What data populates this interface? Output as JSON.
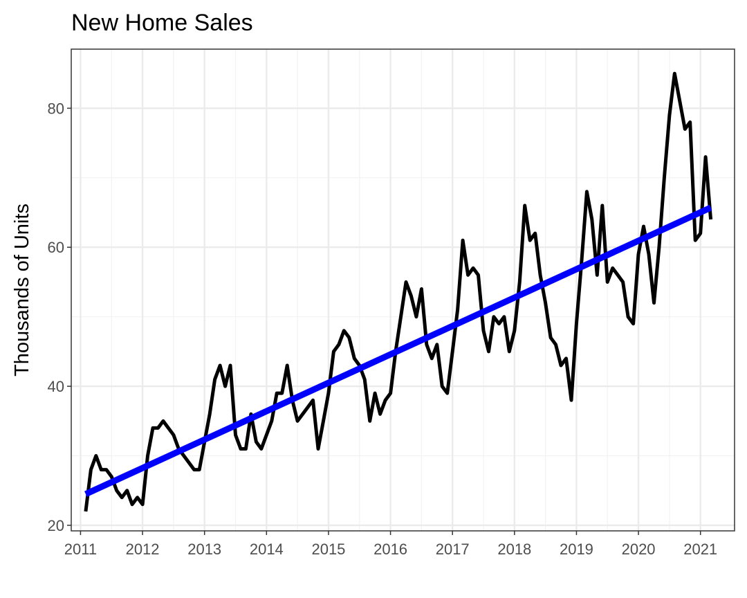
{
  "chart_data": {
    "type": "line",
    "title": "New Home Sales",
    "xlabel": "",
    "ylabel": "Thousands of Units",
    "xlim": [
      2010.85,
      2021.55
    ],
    "ylim": [
      19.2,
      88.5
    ],
    "x_ticks": [
      2011,
      2012,
      2013,
      2014,
      2015,
      2016,
      2017,
      2018,
      2019,
      2020,
      2021
    ],
    "x_tick_labels": [
      "2011",
      "2012",
      "2013",
      "2014",
      "2015",
      "2016",
      "2017",
      "2018",
      "2019",
      "2020",
      "2021"
    ],
    "y_ticks": [
      20,
      40,
      60,
      80
    ],
    "y_tick_labels": [
      "20",
      "40",
      "60",
      "80"
    ],
    "y_minor_ticks": [
      30,
      50,
      70
    ],
    "x_minor_ticks": [
      2011.5,
      2012.5,
      2013.5,
      2014.5,
      2015.5,
      2016.5,
      2017.5,
      2018.5,
      2019.5,
      2020.5
    ],
    "grid": true,
    "series": [
      {
        "color": "#000000",
        "x_start": 2011.0833,
        "x_step": 0.08333,
        "values": [
          22,
          28,
          30,
          28,
          28,
          27,
          25,
          24,
          25,
          23,
          24,
          23,
          30,
          34,
          34,
          35,
          34,
          33,
          31,
          30,
          29,
          28,
          28,
          32,
          36,
          41,
          43,
          40,
          43,
          33,
          31,
          31,
          36,
          32,
          31,
          33,
          35,
          39,
          39,
          43,
          38,
          35,
          36,
          37,
          38,
          31,
          35,
          39,
          45,
          46,
          48,
          47,
          44,
          43,
          41,
          35,
          39,
          36,
          38,
          39,
          45,
          50,
          55,
          53,
          50,
          54,
          46,
          44,
          46,
          40,
          39,
          45,
          51,
          61,
          56,
          57,
          56,
          48,
          45,
          50,
          49,
          50,
          45,
          48,
          55,
          66,
          61,
          62,
          56,
          52,
          47,
          46,
          43,
          44,
          38,
          49,
          58,
          68,
          64,
          56,
          66,
          55,
          57,
          56,
          55,
          50,
          49,
          59,
          63,
          59,
          52,
          60,
          70,
          79,
          85,
          81,
          77,
          78,
          61,
          62,
          73,
          64
        ]
      },
      {
        "color": "#0000ff",
        "type": "linear-trend",
        "x": [
          2011.0833,
          2021.1667
        ],
        "values": [
          24.5,
          65.7
        ]
      }
    ]
  }
}
